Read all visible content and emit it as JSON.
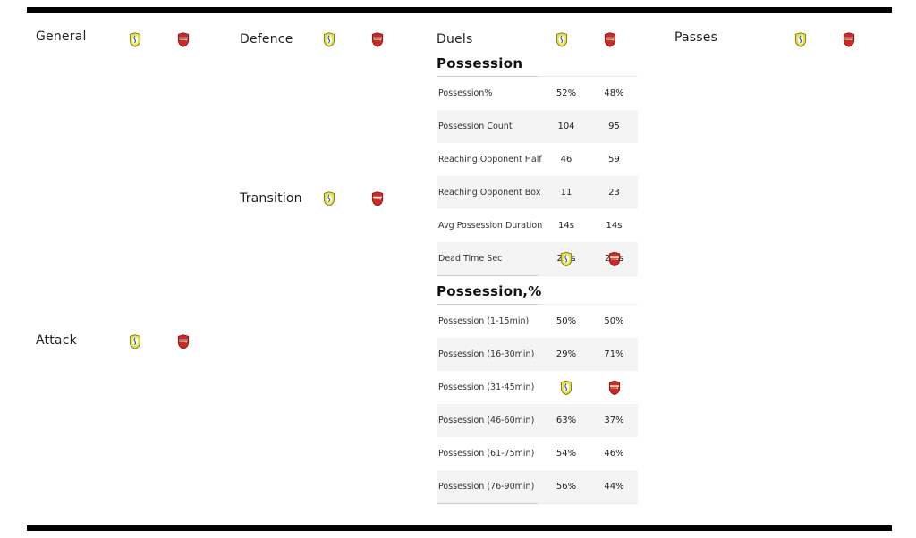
{
  "page": {
    "background": "#ffffff",
    "frame_bar_color": "#000000",
    "row_stripe_color": "#f4f4f4",
    "home_badge_color": "#e9e14a",
    "away_badge_color": "#cd2a26"
  },
  "category_headers": [
    {
      "label": "General"
    },
    {
      "label": "Defence"
    },
    {
      "label": "Duels"
    },
    {
      "label": "Passes"
    },
    {
      "label": "Transition"
    },
    {
      "label": "Attack"
    }
  ],
  "sections": [
    {
      "title": "Possession",
      "rows": [
        {
          "label": "Possession%",
          "home": "52%",
          "away": "48%"
        },
        {
          "label": "Possession Count",
          "home": "104",
          "away": "95"
        },
        {
          "label": "Reaching Opponent Half",
          "home": "46",
          "away": "59"
        },
        {
          "label": "Reaching Opponent Box",
          "home": "11",
          "away": "23"
        },
        {
          "label": "Avg Possession Duration",
          "home": "14s",
          "away": "14s"
        },
        {
          "label": "Dead Time Sec",
          "home": "2 2s",
          "away": "2 2s",
          "badge_overlay": true
        }
      ]
    },
    {
      "title": "Possession,%",
      "rows": [
        {
          "label": "Possession (1-15min)",
          "home": "50%",
          "away": "50%"
        },
        {
          "label": "Possession (16-30min)",
          "home": "29%",
          "away": "71%"
        },
        {
          "label": "Possession (31-45min)",
          "home": "",
          "away": "",
          "badge_overlay": true
        },
        {
          "label": "Possession (46-60min)",
          "home": "63%",
          "away": "37%"
        },
        {
          "label": "Possession (61-75min)",
          "home": "54%",
          "away": "46%"
        },
        {
          "label": "Possession (76-90min)",
          "home": "56%",
          "away": "44%"
        }
      ]
    }
  ]
}
